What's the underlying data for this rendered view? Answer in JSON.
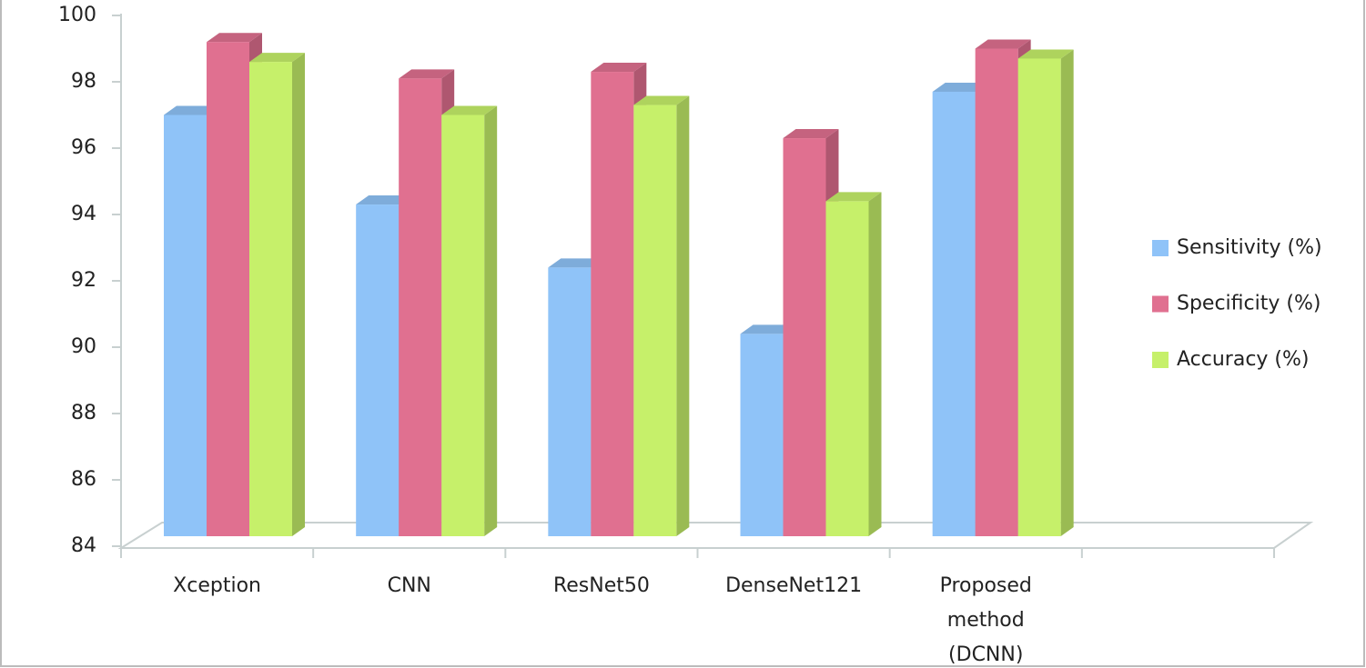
{
  "chart_data": {
    "type": "bar3d",
    "categories": [
      "Xception",
      "CNN",
      "ResNet50",
      "DenseNet121",
      "Proposed method (DCNN)"
    ],
    "series": [
      {
        "name": "Sensitivity (%)",
        "color": "#8fc3f8",
        "values": [
          97.0,
          94.3,
          92.4,
          90.4,
          97.7
        ]
      },
      {
        "name": "Specificity (%)",
        "color": "#e07090",
        "values": [
          99.2,
          98.1,
          98.3,
          96.3,
          99.0
        ]
      },
      {
        "name": "Accuracy (%)",
        "color": "#c6f06a",
        "values": [
          98.6,
          97.0,
          97.3,
          94.4,
          98.7
        ]
      }
    ],
    "ylim": [
      84,
      100
    ],
    "yticks": [
      84,
      86,
      88,
      90,
      92,
      94,
      96,
      98,
      100
    ],
    "legend": "right"
  }
}
